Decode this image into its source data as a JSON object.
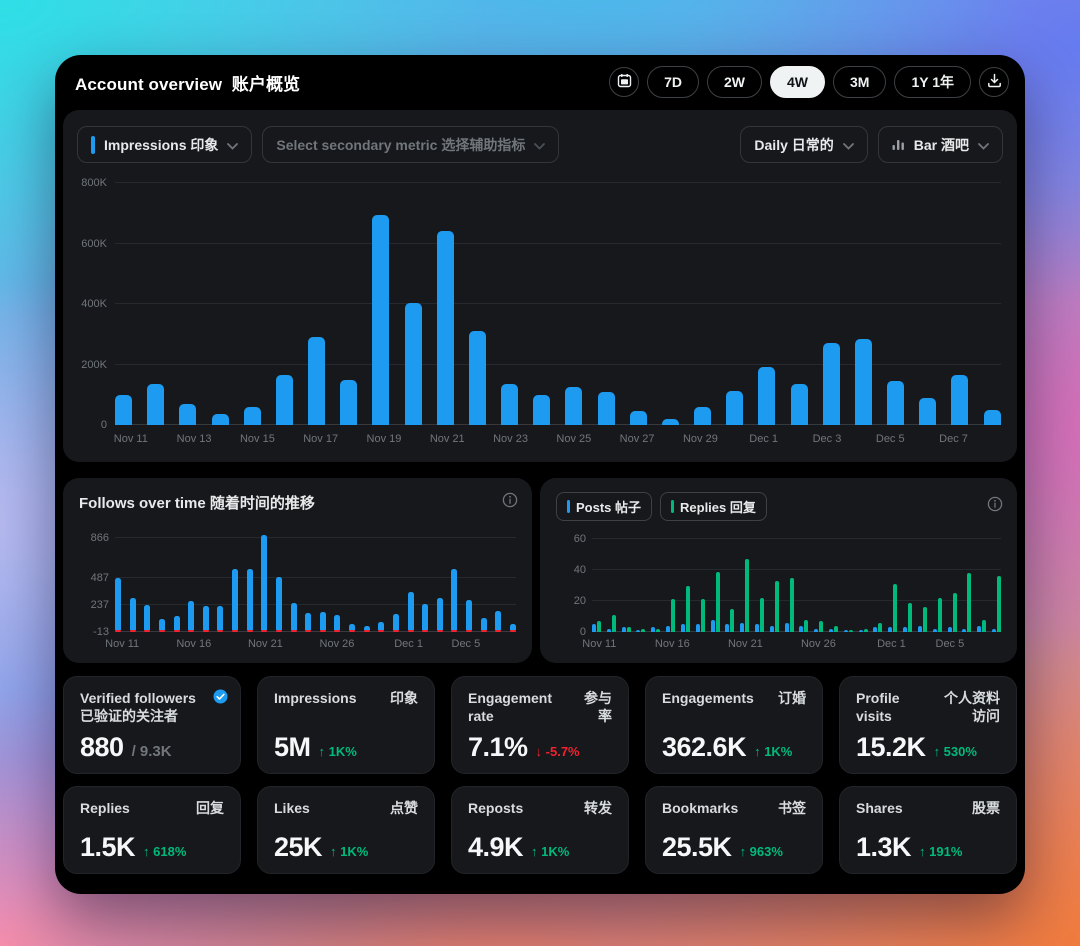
{
  "header": {
    "title_en": "Account overview",
    "title_zh": "账户概览",
    "ranges": [
      {
        "label": "7D",
        "active": false
      },
      {
        "label": "2W",
        "active": false
      },
      {
        "label": "4W",
        "active": true
      },
      {
        "label": "3M",
        "active": false
      },
      {
        "label": "1Y 1年",
        "active": false
      }
    ],
    "icons": [
      "calendar-icon",
      "download-icon"
    ]
  },
  "controls": {
    "primary_metric": {
      "label": "Impressions 印象",
      "accent_color": "#1D9BF0"
    },
    "secondary_metric": {
      "placeholder": "Select secondary metric 选择辅助指标"
    },
    "interval": {
      "label": "Daily 日常的"
    },
    "chart_type": {
      "label": "Bar 酒吧",
      "icon": "bar-chart-icon"
    }
  },
  "colors": {
    "accent_blue": "#1D9BF0",
    "positive_green": "#00BA7C",
    "negative_red": "#F4212E",
    "panel_bg": "#16181C",
    "muted_text": "#71767B"
  },
  "chart_data": [
    {
      "id": "impressions",
      "type": "bar",
      "title": "Impressions 印象",
      "interval": "Daily",
      "bar_color": "#1D9BF0",
      "ylim": [
        0,
        800000
      ],
      "grid": true,
      "yticks": [
        {
          "v": 0,
          "label": "0"
        },
        {
          "v": 200000,
          "label": "200K"
        },
        {
          "v": 400000,
          "label": "400K"
        },
        {
          "v": 600000,
          "label": "600K"
        },
        {
          "v": 800000,
          "label": "800K"
        }
      ],
      "categories": [
        "Nov 11",
        "Nov 12",
        "Nov 13",
        "Nov 14",
        "Nov 15",
        "Nov 16",
        "Nov 17",
        "Nov 18",
        "Nov 19",
        "Nov 20",
        "Nov 21",
        "Nov 22",
        "Nov 23",
        "Nov 24",
        "Nov 25",
        "Nov 26",
        "Nov 27",
        "Nov 28",
        "Nov 29",
        "Nov 30",
        "Dec 1",
        "Dec 2",
        "Dec 3",
        "Dec 4",
        "Dec 5",
        "Dec 6",
        "Dec 7",
        "Dec 8"
      ],
      "values": [
        100000,
        135000,
        70000,
        38000,
        60000,
        165000,
        290000,
        148000,
        695000,
        405000,
        640000,
        310000,
        135000,
        100000,
        125000,
        108000,
        47000,
        21000,
        58000,
        114000,
        192000,
        136000,
        270000,
        284000,
        144000,
        88000,
        166000,
        49000
      ],
      "xticks": [
        {
          "i": 0,
          "label": "Nov 11"
        },
        {
          "i": 2,
          "label": "Nov 13"
        },
        {
          "i": 4,
          "label": "Nov 15"
        },
        {
          "i": 6,
          "label": "Nov 17"
        },
        {
          "i": 8,
          "label": "Nov 19"
        },
        {
          "i": 10,
          "label": "Nov 21"
        },
        {
          "i": 12,
          "label": "Nov 23"
        },
        {
          "i": 14,
          "label": "Nov 25"
        },
        {
          "i": 16,
          "label": "Nov 27"
        },
        {
          "i": 18,
          "label": "Nov 29"
        },
        {
          "i": 20,
          "label": "Dec 1"
        },
        {
          "i": 22,
          "label": "Dec 3"
        },
        {
          "i": 24,
          "label": "Dec 5"
        },
        {
          "i": 26,
          "label": "Dec 7"
        }
      ]
    },
    {
      "id": "follows",
      "type": "bar",
      "title": "Follows over time 随着时间的推移",
      "bar_color": "#1D9BF0",
      "negative_marks": true,
      "negative_color": "#F4212E",
      "ylim": [
        -13,
        880
      ],
      "yticks": [
        {
          "v": 866,
          "label": "866"
        },
        {
          "v": 487,
          "label": "487"
        },
        {
          "v": 237,
          "label": "237"
        },
        {
          "v": -13,
          "label": "-13"
        }
      ],
      "categories": [
        "Nov 11",
        "Nov 12",
        "Nov 13",
        "Nov 14",
        "Nov 15",
        "Nov 16",
        "Nov 17",
        "Nov 18",
        "Nov 19",
        "Nov 20",
        "Nov 21",
        "Nov 22",
        "Nov 23",
        "Nov 24",
        "Nov 25",
        "Nov 26",
        "Nov 27",
        "Nov 28",
        "Nov 29",
        "Nov 30",
        "Dec 1",
        "Dec 2",
        "Dec 3",
        "Dec 4",
        "Dec 5",
        "Dec 6",
        "Dec 7",
        "Dec 8"
      ],
      "values": [
        480,
        300,
        237,
        100,
        135,
        270,
        225,
        220,
        570,
        570,
        880,
        490,
        250,
        160,
        165,
        140,
        60,
        40,
        75,
        150,
        350,
        245,
        300,
        565,
        280,
        110,
        180,
        55
      ],
      "xticks": [
        {
          "i": 0,
          "label": "Nov 11"
        },
        {
          "i": 5,
          "label": "Nov 16"
        },
        {
          "i": 10,
          "label": "Nov 21"
        },
        {
          "i": 15,
          "label": "Nov 26"
        },
        {
          "i": 20,
          "label": "Dec 1"
        },
        {
          "i": 24,
          "label": "Dec 5"
        }
      ]
    },
    {
      "id": "posts-replies",
      "type": "bar",
      "title": "Posts and Replies",
      "legend": [
        {
          "label": "Posts 帖子",
          "color": "#1D9BF0"
        },
        {
          "label": "Replies 回复",
          "color": "#00BA7C"
        }
      ],
      "ylim": [
        0,
        62
      ],
      "yticks": [
        {
          "v": 60,
          "label": "60"
        },
        {
          "v": 40,
          "label": "40"
        },
        {
          "v": 20,
          "label": "20"
        },
        {
          "v": 0,
          "label": "0"
        }
      ],
      "categories": [
        "Nov 11",
        "Nov 12",
        "Nov 13",
        "Nov 14",
        "Nov 15",
        "Nov 16",
        "Nov 17",
        "Nov 18",
        "Nov 19",
        "Nov 20",
        "Nov 21",
        "Nov 22",
        "Nov 23",
        "Nov 24",
        "Nov 25",
        "Nov 26",
        "Nov 27",
        "Nov 28",
        "Nov 29",
        "Nov 30",
        "Dec 1",
        "Dec 2",
        "Dec 3",
        "Dec 4",
        "Dec 5",
        "Dec 6",
        "Dec 7",
        "Dec 8"
      ],
      "series": [
        {
          "name": "Posts 帖子",
          "color": "#1D9BF0",
          "values": [
            5,
            2,
            3,
            1,
            3,
            4,
            5,
            5,
            8,
            5,
            6,
            5,
            4,
            6,
            4,
            2,
            2,
            1,
            1,
            3,
            3,
            3,
            4,
            2,
            3,
            2,
            4,
            2
          ]
        },
        {
          "name": "Replies 回复",
          "color": "#00BA7C",
          "values": [
            7,
            11,
            3,
            2,
            2,
            21,
            30,
            21,
            39,
            15,
            47,
            22,
            33,
            35,
            8,
            7,
            4,
            1,
            2,
            6,
            31,
            19,
            16,
            22,
            25,
            38,
            8,
            36
          ]
        }
      ],
      "xticks": [
        {
          "i": 0,
          "label": "Nov 11"
        },
        {
          "i": 5,
          "label": "Nov 16"
        },
        {
          "i": 10,
          "label": "Nov 21"
        },
        {
          "i": 15,
          "label": "Nov 26"
        },
        {
          "i": 20,
          "label": "Dec 1"
        },
        {
          "i": 24,
          "label": "Dec 5"
        }
      ]
    }
  ],
  "stats": {
    "row1": [
      {
        "slug": "verified-followers",
        "label_en": "Verified followers",
        "label_zh": "已验证的关注者",
        "badge": "verified-badge",
        "value": "880",
        "suffix": "/ 9.3K"
      },
      {
        "slug": "impressions",
        "label_en": "Impressions",
        "label_zh": "印象",
        "value": "5M",
        "delta_arrow": "↑",
        "delta_text": "1K%",
        "delta_dir": "up"
      },
      {
        "slug": "engagement-rate",
        "label_en": "Engagement rate",
        "label_zh": "参与率",
        "value": "7.1%",
        "delta_arrow": "↓",
        "delta_text": "-5.7%",
        "delta_dir": "down"
      },
      {
        "slug": "engagements",
        "label_en": "Engagements",
        "label_zh": "订婚",
        "value": "362.6K",
        "delta_arrow": "↑",
        "delta_text": "1K%",
        "delta_dir": "up"
      },
      {
        "slug": "profile-visits",
        "label_en": "Profile visits",
        "label_zh": "个人资料访问",
        "value": "15.2K",
        "delta_arrow": "↑",
        "delta_text": "530%",
        "delta_dir": "up"
      }
    ],
    "row2": [
      {
        "slug": "replies",
        "label_en": "Replies",
        "label_zh": "回复",
        "value": "1.5K",
        "delta_arrow": "↑",
        "delta_text": "618%",
        "delta_dir": "up"
      },
      {
        "slug": "likes",
        "label_en": "Likes",
        "label_zh": "点赞",
        "value": "25K",
        "delta_arrow": "↑",
        "delta_text": "1K%",
        "delta_dir": "up"
      },
      {
        "slug": "reposts",
        "label_en": "Reposts",
        "label_zh": "转发",
        "value": "4.9K",
        "delta_arrow": "↑",
        "delta_text": "1K%",
        "delta_dir": "up"
      },
      {
        "slug": "bookmarks",
        "label_en": "Bookmarks",
        "label_zh": "书签",
        "value": "25.5K",
        "delta_arrow": "↑",
        "delta_text": "963%",
        "delta_dir": "up"
      },
      {
        "slug": "shares",
        "label_en": "Shares",
        "label_zh": "股票",
        "value": "1.3K",
        "delta_arrow": "↑",
        "delta_text": "191%",
        "delta_dir": "up"
      }
    ]
  }
}
